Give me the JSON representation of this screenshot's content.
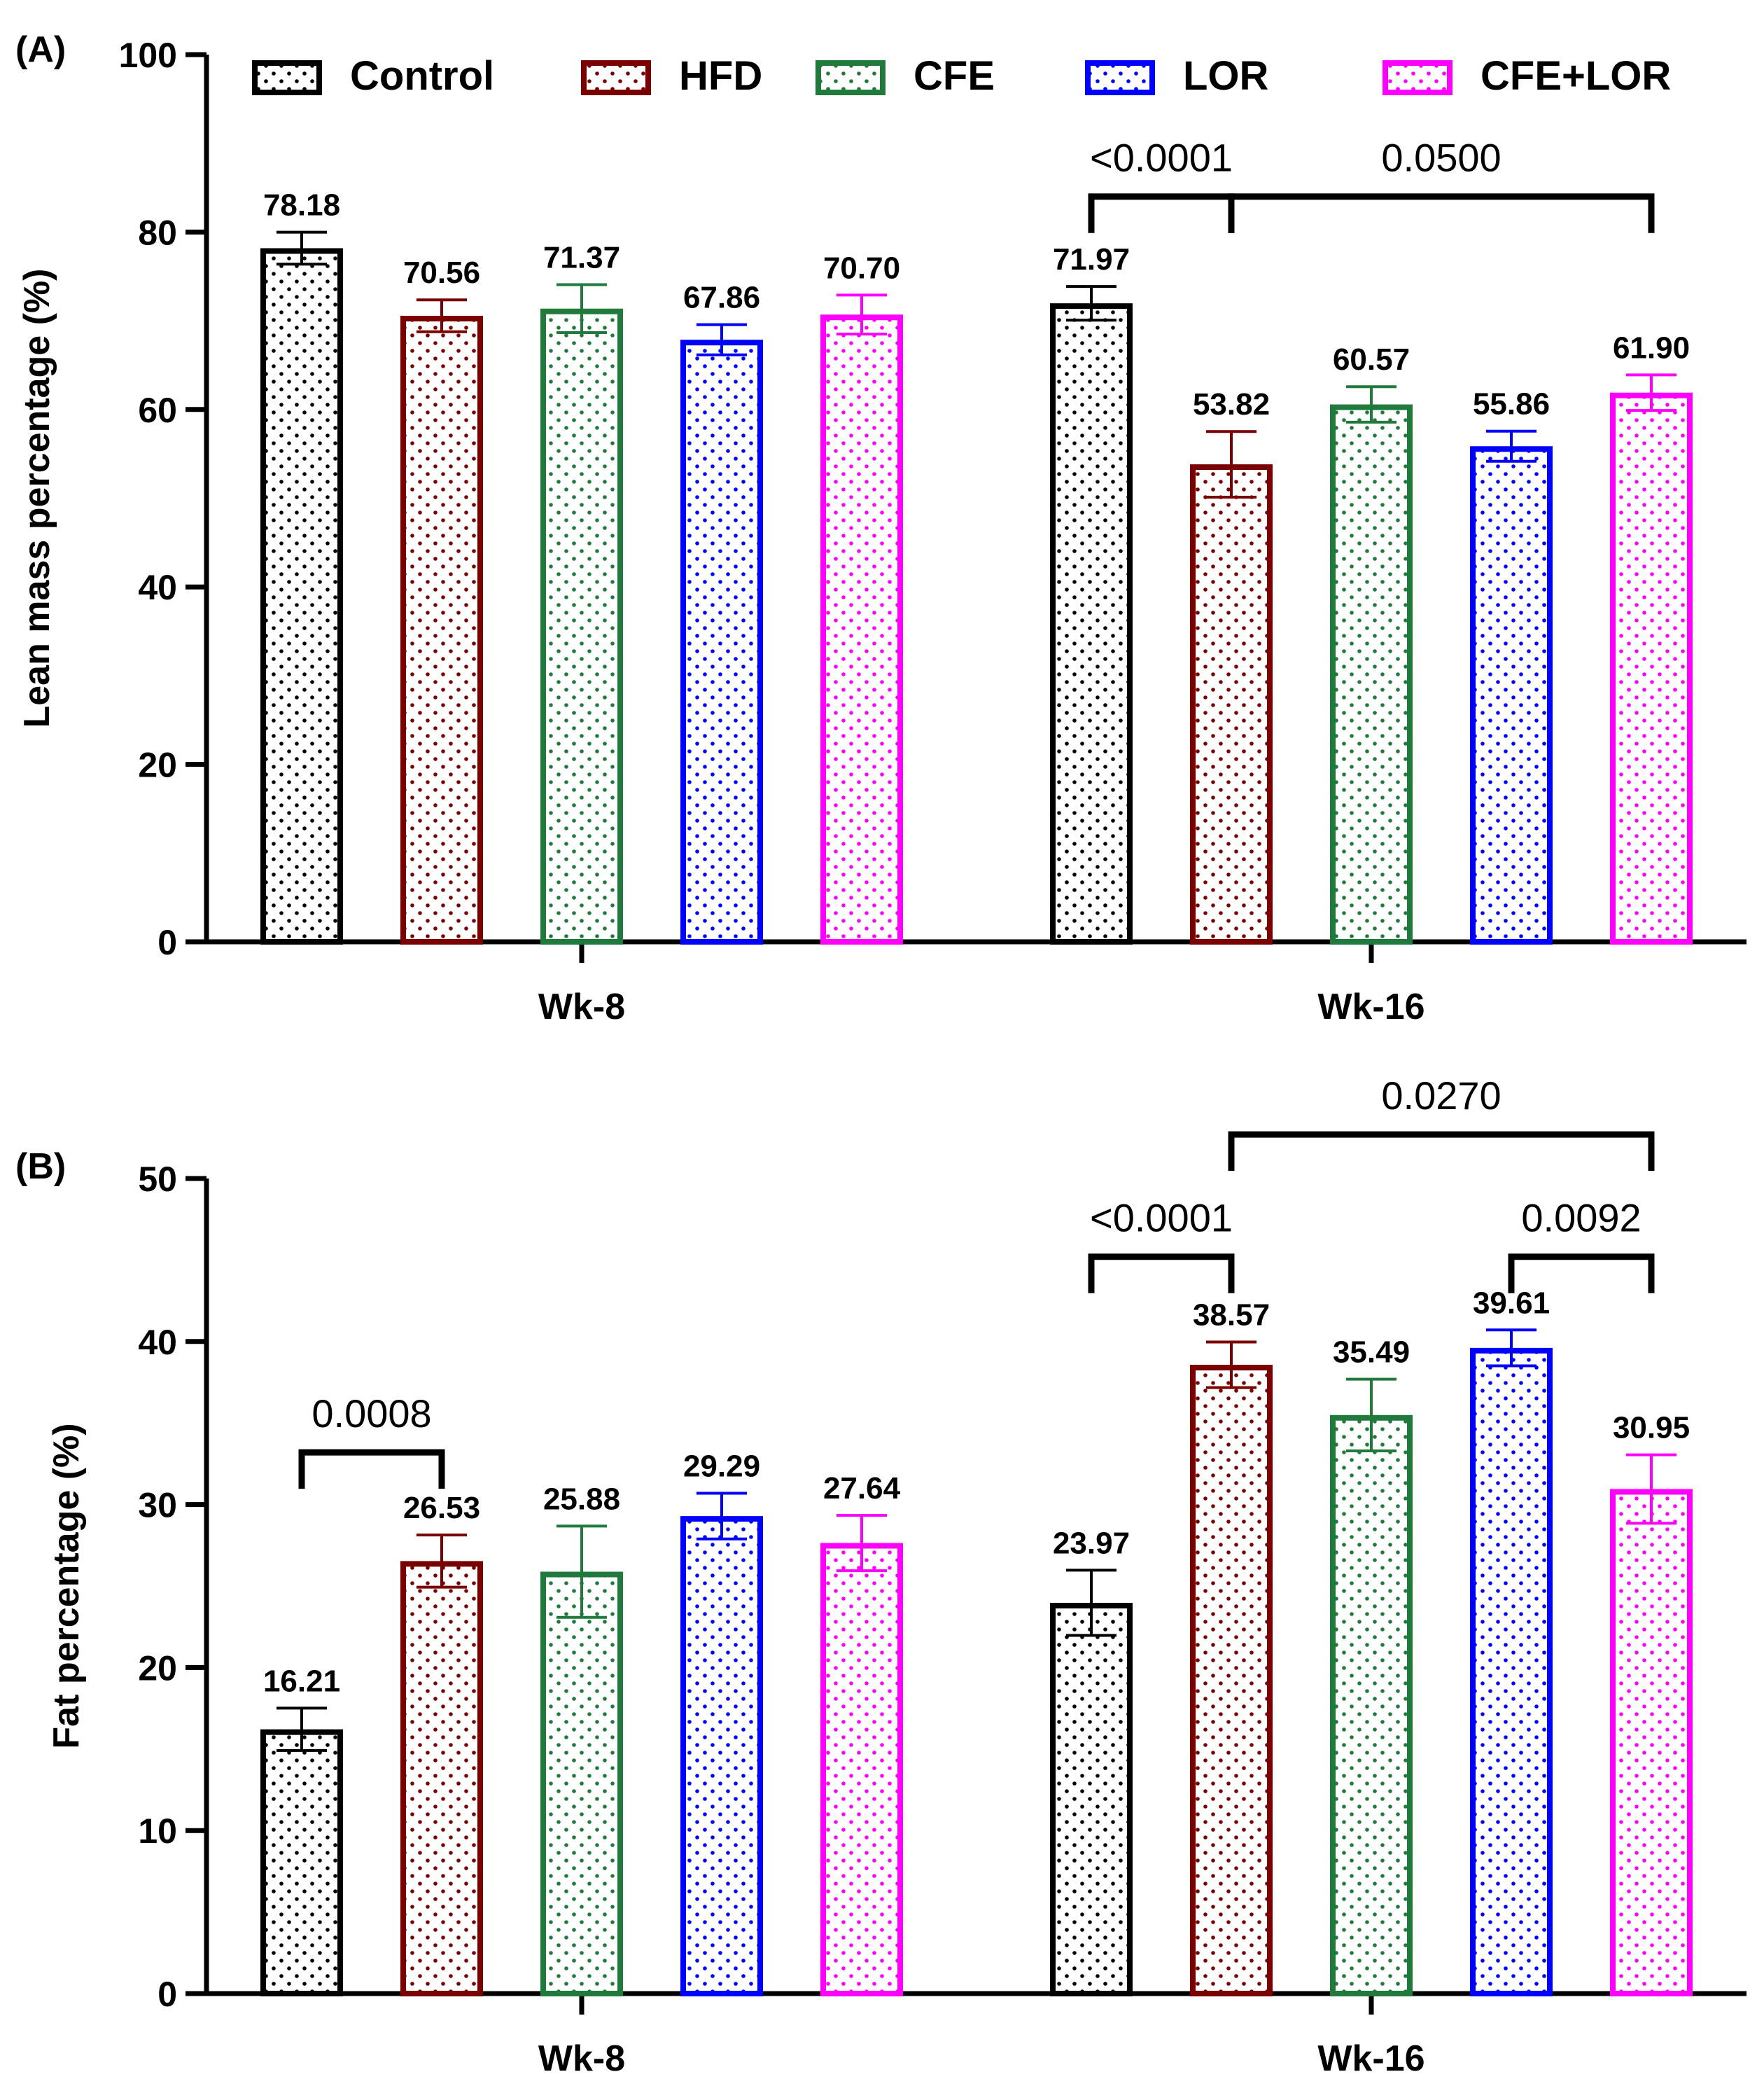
{
  "legend": [
    {
      "name": "Control",
      "color": "#000000"
    },
    {
      "name": "HFD",
      "color": "#7a0000"
    },
    {
      "name": "CFE",
      "color": "#1f7a3c"
    },
    {
      "name": "LOR",
      "color": "#0000ff"
    },
    {
      "name": "CFE+LOR",
      "color": "#ff00ff"
    }
  ],
  "chart_data": [
    {
      "panel_label": "(A)",
      "type": "bar",
      "ylabel": "Lean mass percentage (%)",
      "ylim": [
        0,
        100
      ],
      "yticks": [
        0,
        20,
        40,
        60,
        80,
        100
      ],
      "categories": [
        "Wk-8",
        "Wk-16"
      ],
      "series": [
        {
          "name": "Control",
          "values": [
            78.18,
            71.97
          ],
          "errors": [
            1.8,
            1.9
          ],
          "labels": [
            "78.18",
            "71.97"
          ]
        },
        {
          "name": "HFD",
          "values": [
            70.56,
            53.82
          ],
          "errors": [
            1.8,
            3.7
          ],
          "labels": [
            "70.56",
            "53.82"
          ]
        },
        {
          "name": "CFE",
          "values": [
            71.37,
            60.57
          ],
          "errors": [
            2.7,
            2.0
          ],
          "labels": [
            "71.37",
            "60.57"
          ]
        },
        {
          "name": "LOR",
          "values": [
            67.86,
            55.86
          ],
          "errors": [
            1.7,
            1.7
          ],
          "labels": [
            "67.86",
            "55.86"
          ]
        },
        {
          "name": "CFE+LOR",
          "values": [
            70.7,
            61.9
          ],
          "errors": [
            2.2,
            2.0
          ],
          "labels": [
            "70.70",
            "61.90"
          ]
        }
      ],
      "comparisons": [
        {
          "from": [
            "Wk-16",
            "Control"
          ],
          "to": [
            "Wk-16",
            "HFD"
          ],
          "label": "<0.0001",
          "y": 84
        },
        {
          "from": [
            "Wk-16",
            "HFD"
          ],
          "to": [
            "Wk-16",
            "CFE+LOR"
          ],
          "label": "0.0500",
          "y": 84
        }
      ]
    },
    {
      "panel_label": "(B)",
      "type": "bar",
      "ylabel": "Fat percentage (%)",
      "ylim": [
        0,
        50
      ],
      "yticks": [
        0,
        10,
        20,
        30,
        40,
        50
      ],
      "categories": [
        "Wk-8",
        "Wk-16"
      ],
      "series": [
        {
          "name": "Control",
          "values": [
            16.21,
            23.97
          ],
          "errors": [
            1.3,
            2.0
          ],
          "labels": [
            "16.21",
            "23.97"
          ]
        },
        {
          "name": "HFD",
          "values": [
            26.53,
            38.57
          ],
          "errors": [
            1.6,
            1.4
          ],
          "labels": [
            "26.53",
            "38.57"
          ]
        },
        {
          "name": "CFE",
          "values": [
            25.88,
            35.49
          ],
          "errors": [
            2.8,
            2.2
          ],
          "labels": [
            "25.88",
            "35.49"
          ]
        },
        {
          "name": "LOR",
          "values": [
            29.29,
            39.61
          ],
          "errors": [
            1.4,
            1.1
          ],
          "labels": [
            "29.29",
            "39.61"
          ]
        },
        {
          "name": "CFE+LOR",
          "values": [
            27.64,
            30.95
          ],
          "errors": [
            1.7,
            2.1
          ],
          "labels": [
            "27.64",
            "30.95"
          ]
        }
      ],
      "comparisons": [
        {
          "from": [
            "Wk-8",
            "Control"
          ],
          "to": [
            "Wk-8",
            "HFD"
          ],
          "label": "0.0008",
          "y": 33.2
        },
        {
          "from": [
            "Wk-16",
            "Control"
          ],
          "to": [
            "Wk-16",
            "HFD"
          ],
          "label": "<0.0001",
          "y": 45.2
        },
        {
          "from": [
            "Wk-16",
            "HFD"
          ],
          "to": [
            "Wk-16",
            "CFE+LOR"
          ],
          "label": "0.0270",
          "y": 52.7
        },
        {
          "from": [
            "Wk-16",
            "LOR"
          ],
          "to": [
            "Wk-16",
            "CFE+LOR"
          ],
          "label": "0.0092",
          "y": 45.2
        }
      ]
    }
  ]
}
